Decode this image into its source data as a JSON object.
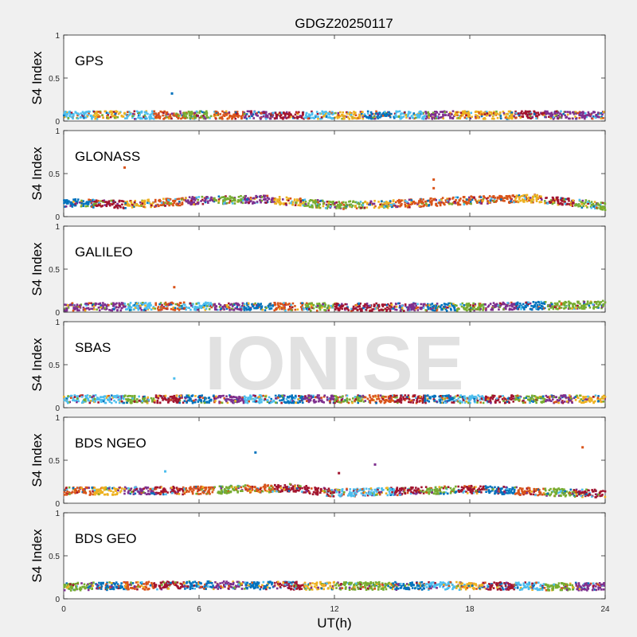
{
  "figure": {
    "title": "GDGZ20250117",
    "xlabel": "UT(h)",
    "watermark": "IONISE",
    "background": "#f0f0f0"
  },
  "chart_data": {
    "type": "scatter",
    "title": "GDGZ20250117",
    "xlabel": "UT(h)",
    "ylabel": "S4 Index",
    "xlim": [
      0,
      24
    ],
    "ylim": [
      0,
      1
    ],
    "xticks": [
      0,
      6,
      12,
      18,
      24
    ],
    "yticks": [
      0,
      0.5,
      1
    ],
    "grid": false,
    "series_colors": [
      "#0072BD",
      "#D95319",
      "#EDB120",
      "#7E2F8E",
      "#77AC30",
      "#4DBEEE",
      "#A2142F"
    ],
    "panels": [
      {
        "label": "GPS",
        "baseline": [
          [
            0,
            0.07
          ],
          [
            6,
            0.07
          ],
          [
            12,
            0.07
          ],
          [
            18,
            0.07
          ],
          [
            24,
            0.07
          ]
        ],
        "outliers": [
          {
            "x": 4.8,
            "y": 0.32,
            "color": "#0072BD"
          }
        ]
      },
      {
        "label": "GLONASS",
        "baseline": [
          [
            0,
            0.16
          ],
          [
            3,
            0.14
          ],
          [
            6,
            0.19
          ],
          [
            9,
            0.2
          ],
          [
            12,
            0.13
          ],
          [
            15,
            0.15
          ],
          [
            18,
            0.19
          ],
          [
            21,
            0.21
          ],
          [
            24,
            0.12
          ]
        ],
        "outliers": [
          {
            "x": 2.7,
            "y": 0.57,
            "color": "#D95319"
          },
          {
            "x": 16.4,
            "y": 0.43,
            "color": "#D95319"
          },
          {
            "x": 16.4,
            "y": 0.33,
            "color": "#D95319"
          }
        ]
      },
      {
        "label": "GALILEO",
        "baseline": [
          [
            0,
            0.06
          ],
          [
            6,
            0.07
          ],
          [
            12,
            0.06
          ],
          [
            18,
            0.06
          ],
          [
            24,
            0.09
          ]
        ],
        "outliers": [
          {
            "x": 4.9,
            "y": 0.29,
            "color": "#D95319"
          }
        ]
      },
      {
        "label": "SBAS",
        "baseline": [
          [
            0,
            0.1
          ],
          [
            6,
            0.1
          ],
          [
            12,
            0.1
          ],
          [
            18,
            0.1
          ],
          [
            24,
            0.1
          ]
        ],
        "outliers": [
          {
            "x": 4.9,
            "y": 0.34,
            "color": "#4DBEEE"
          }
        ]
      },
      {
        "label": "BDS NGEO",
        "baseline": [
          [
            0,
            0.14
          ],
          [
            6,
            0.15
          ],
          [
            10,
            0.18
          ],
          [
            12,
            0.12
          ],
          [
            18,
            0.16
          ],
          [
            24,
            0.11
          ]
        ],
        "outliers": [
          {
            "x": 4.5,
            "y": 0.37,
            "color": "#4DBEEE"
          },
          {
            "x": 8.5,
            "y": 0.59,
            "color": "#0072BD"
          },
          {
            "x": 12.2,
            "y": 0.35,
            "color": "#A2142F"
          },
          {
            "x": 13.8,
            "y": 0.45,
            "color": "#7E2F8E"
          },
          {
            "x": 23.0,
            "y": 0.65,
            "color": "#D95319"
          }
        ]
      },
      {
        "label": "BDS GEO",
        "baseline": [
          [
            0,
            0.14
          ],
          [
            6,
            0.16
          ],
          [
            12,
            0.15
          ],
          [
            18,
            0.15
          ],
          [
            24,
            0.14
          ]
        ],
        "outliers": []
      }
    ]
  }
}
